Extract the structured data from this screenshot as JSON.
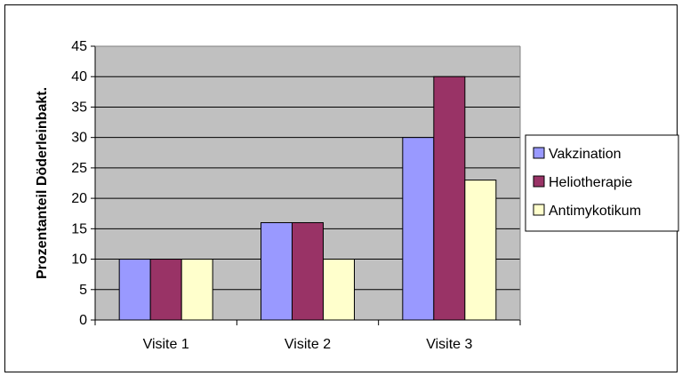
{
  "chart_data": {
    "type": "bar",
    "title": "",
    "xlabel": "",
    "ylabel": "Prozentanteil Döderleinbakt.",
    "categories": [
      "Visite 1",
      "Visite 2",
      "Visite 3"
    ],
    "series": [
      {
        "name": "Vakzination",
        "values": [
          10,
          16,
          30
        ],
        "color": "#9999ff"
      },
      {
        "name": "Heliotherapie",
        "values": [
          10,
          16,
          40
        ],
        "color": "#993366"
      },
      {
        "name": "Antimykotikum",
        "values": [
          10,
          10,
          23
        ],
        "color": "#ffffcc"
      }
    ],
    "ylim": [
      0,
      45
    ],
    "yticks": [
      0,
      5,
      10,
      15,
      20,
      25,
      30,
      35,
      40,
      45
    ],
    "grid": true,
    "plot_background": "#c0c0c0",
    "legend_position": "right"
  }
}
